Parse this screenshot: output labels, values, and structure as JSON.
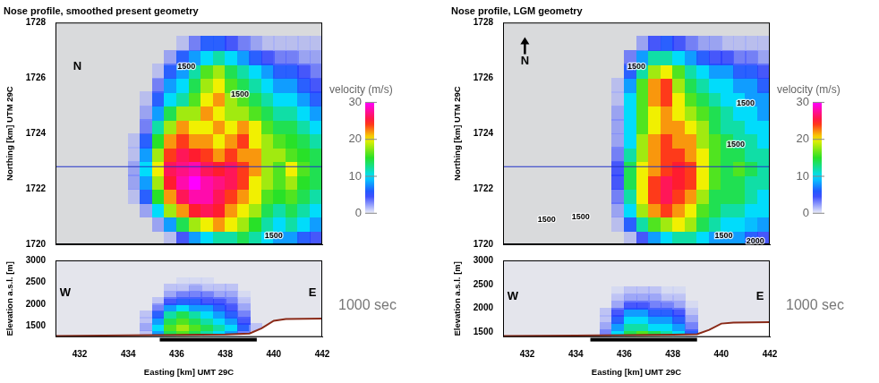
{
  "chart_data": [
    {
      "type": "heatmap",
      "title": "Nose profile, smoothed present geometry",
      "ylabel": "Northing [km] UTM 29C",
      "xlim": [
        431,
        442
      ],
      "ylim": [
        1720,
        1728
      ],
      "yticks": [
        1720,
        1722,
        1724,
        1726,
        1728
      ],
      "tick_labels": "y",
      "grid": false,
      "x_centers": [
        434.25,
        434.75,
        435.25,
        435.75,
        436.25,
        436.75,
        437.25,
        437.75,
        438.25,
        438.75,
        439.25,
        439.75,
        440.25,
        440.75,
        441.25,
        441.75
      ],
      "y_centers": [
        1720.25,
        1720.75,
        1721.25,
        1721.75,
        1722.25,
        1722.75,
        1723.25,
        1723.75,
        1724.25,
        1724.75,
        1725.25,
        1725.75,
        1726.25,
        1726.75,
        1727.25,
        1727.75
      ],
      "cells": [
        [
          0,
          0,
          0,
          2,
          5,
          8,
          10,
          12,
          12,
          14,
          12,
          10,
          8,
          8,
          6,
          5
        ],
        [
          0,
          0,
          3,
          8,
          14,
          18,
          20,
          22,
          20,
          18,
          15,
          12,
          10,
          12,
          10,
          8
        ],
        [
          0,
          3,
          10,
          18,
          22,
          25,
          26,
          25,
          22,
          20,
          18,
          14,
          12,
          14,
          12,
          10
        ],
        [
          2,
          6,
          15,
          22,
          26,
          28,
          28,
          26,
          24,
          22,
          20,
          16,
          15,
          16,
          14,
          12
        ],
        [
          3,
          8,
          18,
          25,
          28,
          30,
          28,
          27,
          26,
          24,
          20,
          18,
          16,
          18,
          15,
          14
        ],
        [
          3,
          10,
          20,
          26,
          27,
          28,
          26,
          25,
          26,
          24,
          22,
          18,
          16,
          20,
          16,
          14
        ],
        [
          2,
          8,
          18,
          24,
          26,
          25,
          24,
          22,
          24,
          22,
          22,
          18,
          18,
          16,
          15,
          14
        ],
        [
          2,
          6,
          15,
          22,
          24,
          22,
          22,
          20,
          22,
          24,
          20,
          18,
          16,
          15,
          14,
          12
        ],
        [
          0,
          4,
          12,
          18,
          22,
          20,
          20,
          22,
          20,
          22,
          20,
          16,
          14,
          14,
          12,
          10
        ],
        [
          0,
          3,
          8,
          14,
          18,
          18,
          22,
          20,
          18,
          18,
          16,
          14,
          12,
          12,
          10,
          8
        ],
        [
          0,
          2,
          6,
          10,
          12,
          16,
          20,
          22,
          18,
          16,
          14,
          12,
          10,
          10,
          8,
          6
        ],
        [
          0,
          0,
          4,
          8,
          10,
          14,
          18,
          20,
          16,
          14,
          12,
          10,
          8,
          8,
          6,
          5
        ],
        [
          0,
          0,
          2,
          6,
          8,
          12,
          16,
          18,
          14,
          12,
          10,
          8,
          6,
          6,
          5,
          4
        ],
        [
          0,
          0,
          0,
          3,
          6,
          8,
          10,
          12,
          10,
          8,
          6,
          5,
          4,
          4,
          3,
          3
        ],
        [
          0,
          0,
          0,
          0,
          2,
          4,
          6,
          6,
          5,
          4,
          3,
          2,
          2,
          2,
          2,
          2
        ],
        [
          0,
          0,
          0,
          0,
          0,
          0,
          0,
          0,
          0,
          0,
          0,
          0,
          0,
          0,
          0,
          0
        ]
      ],
      "colorbar": {
        "title": "velocity (m/s)",
        "range": [
          0,
          30
        ],
        "ticks": [
          0,
          10,
          20,
          30
        ]
      },
      "profile_northing": 1722.8,
      "annotations": [
        {
          "text": "N",
          "x": 431.9,
          "y": 1726.4
        },
        {
          "text": "1500",
          "x": 436.4,
          "y": 1726.4
        },
        {
          "text": "1500",
          "x": 438.6,
          "y": 1725.4
        },
        {
          "text": "1500",
          "x": 440.0,
          "y": 1720.3
        }
      ]
    },
    {
      "type": "heatmap",
      "xlabel": "Easting [km] UMT 29C",
      "ylabel": "Elevation a.s.l. [m]",
      "xlim": [
        431,
        442
      ],
      "xticks": [
        432,
        434,
        436,
        438,
        440,
        442
      ],
      "ylim": [
        1250,
        3000
      ],
      "yticks": [
        1500,
        2000,
        2500,
        3000
      ],
      "grid": false,
      "x_centers": [
        434.25,
        434.75,
        435.25,
        435.75,
        436.25,
        436.75,
        437.25,
        437.75,
        438.25,
        438.75,
        439.25,
        439.75
      ],
      "y_centers": [
        1325,
        1475,
        1625,
        1775,
        1925,
        2075,
        2225,
        2375,
        2525
      ],
      "cells": [
        [
          0,
          2,
          8,
          14,
          16,
          14,
          12,
          10,
          8,
          4,
          0,
          0
        ],
        [
          0,
          3,
          10,
          16,
          18,
          16,
          14,
          12,
          10,
          6,
          2,
          0
        ],
        [
          0,
          2,
          8,
          14,
          16,
          14,
          12,
          10,
          8,
          5,
          0,
          0
        ],
        [
          0,
          2,
          6,
          12,
          14,
          12,
          10,
          8,
          6,
          4,
          0,
          0
        ],
        [
          0,
          0,
          4,
          8,
          10,
          8,
          8,
          6,
          5,
          3,
          0,
          0
        ],
        [
          0,
          0,
          2,
          5,
          6,
          6,
          5,
          5,
          4,
          2,
          0,
          0
        ],
        [
          0,
          0,
          0,
          3,
          4,
          4,
          4,
          3,
          3,
          1,
          0,
          0
        ],
        [
          0,
          0,
          0,
          2,
          2,
          3,
          2,
          2,
          2,
          0,
          0,
          0
        ],
        [
          0,
          0,
          0,
          0,
          1,
          1,
          1,
          0,
          0,
          0,
          0,
          0
        ]
      ],
      "color_range": [
        0,
        30
      ],
      "terrain": {
        "x": [
          431,
          434,
          436,
          438,
          439,
          439.5,
          440,
          440.5,
          442
        ],
        "y": [
          1270,
          1290,
          1300,
          1310,
          1330,
          1450,
          1620,
          1660,
          1670
        ]
      },
      "extent_bar": [
        435.3,
        439.3
      ],
      "annotations": [
        {
          "text": "W",
          "x": 431.4,
          "y": 2250
        },
        {
          "text": "E",
          "x": 441.6,
          "y": 2250
        }
      ],
      "time_label": "1000 sec"
    },
    {
      "type": "heatmap",
      "title": "Nose profile, LGM geometry",
      "ylabel": "Northing [km] UTM 29C",
      "xlim": [
        431,
        442
      ],
      "ylim": [
        1720,
        1728
      ],
      "yticks": [
        1720,
        1722,
        1724,
        1726,
        1728
      ],
      "tick_labels": "y",
      "grid": false,
      "x_centers": [
        434.25,
        434.75,
        435.25,
        435.75,
        436.25,
        436.75,
        437.25,
        437.75,
        438.25,
        438.75,
        439.25,
        439.75,
        440.25,
        440.75,
        441.25,
        441.75
      ],
      "y_centers": [
        1720.25,
        1720.75,
        1721.25,
        1721.75,
        1722.25,
        1722.75,
        1723.25,
        1723.75,
        1724.25,
        1724.75,
        1725.25,
        1725.75,
        1726.25,
        1726.75,
        1727.25,
        1727.75
      ],
      "cells": [
        [
          0,
          0,
          0,
          0,
          2,
          5,
          8,
          10,
          12,
          12,
          10,
          8,
          8,
          8,
          6,
          5
        ],
        [
          0,
          0,
          0,
          2,
          6,
          12,
          16,
          18,
          20,
          18,
          14,
          12,
          10,
          10,
          9,
          8
        ],
        [
          0,
          0,
          0,
          3,
          10,
          18,
          22,
          24,
          22,
          20,
          16,
          14,
          12,
          12,
          10,
          10
        ],
        [
          0,
          0,
          0,
          4,
          12,
          20,
          24,
          26,
          24,
          22,
          18,
          14,
          14,
          14,
          12,
          10
        ],
        [
          0,
          0,
          0,
          5,
          14,
          20,
          24,
          26,
          25,
          24,
          20,
          16,
          14,
          14,
          12,
          12
        ],
        [
          0,
          0,
          0,
          5,
          14,
          20,
          22,
          24,
          25,
          24,
          20,
          16,
          14,
          16,
          14,
          12
        ],
        [
          0,
          0,
          0,
          4,
          12,
          18,
          22,
          24,
          24,
          22,
          20,
          16,
          14,
          14,
          12,
          12
        ],
        [
          0,
          0,
          0,
          3,
          10,
          18,
          22,
          24,
          22,
          22,
          18,
          16,
          14,
          12,
          12,
          10
        ],
        [
          0,
          0,
          0,
          3,
          10,
          16,
          20,
          22,
          22,
          20,
          18,
          14,
          12,
          12,
          10,
          10
        ],
        [
          0,
          0,
          0,
          3,
          10,
          16,
          20,
          22,
          20,
          18,
          16,
          14,
          12,
          10,
          10,
          8
        ],
        [
          0,
          0,
          0,
          2,
          10,
          16,
          22,
          24,
          20,
          16,
          14,
          12,
          10,
          10,
          8,
          8
        ],
        [
          0,
          0,
          0,
          2,
          8,
          16,
          22,
          24,
          18,
          14,
          12,
          10,
          10,
          8,
          8,
          6
        ],
        [
          0,
          0,
          0,
          0,
          6,
          12,
          18,
          20,
          16,
          12,
          10,
          8,
          8,
          6,
          6,
          5
        ],
        [
          0,
          0,
          0,
          0,
          4,
          8,
          12,
          12,
          10,
          8,
          6,
          5,
          5,
          4,
          4,
          3
        ],
        [
          0,
          0,
          0,
          0,
          0,
          3,
          5,
          6,
          5,
          4,
          3,
          3,
          2,
          2,
          2,
          2
        ],
        [
          0,
          0,
          0,
          0,
          0,
          0,
          0,
          0,
          0,
          0,
          0,
          0,
          0,
          0,
          0,
          0
        ]
      ],
      "colorbar": {
        "title": "velocity (m/s)",
        "range": [
          0,
          30
        ],
        "ticks": [
          0,
          10,
          20,
          30
        ]
      },
      "profile_northing": 1722.8,
      "annotations": [
        {
          "text": "N",
          "x": 431.9,
          "y": 1726.6,
          "marker": "arrow"
        },
        {
          "text": "1500",
          "x": 436.5,
          "y": 1726.4
        },
        {
          "text": "1500",
          "x": 441.0,
          "y": 1725.1
        },
        {
          "text": "1500",
          "x": 440.6,
          "y": 1723.6
        },
        {
          "text": "1500",
          "x": 432.8,
          "y": 1720.9
        },
        {
          "text": "1500",
          "x": 434.2,
          "y": 1721.0
        },
        {
          "text": "1500",
          "x": 440.1,
          "y": 1720.3
        },
        {
          "text": "2000",
          "x": 441.4,
          "y": 1720.1
        }
      ]
    },
    {
      "type": "heatmap",
      "xlabel": "Easting [km] UMT 29C",
      "ylabel": "Elevation a.s.l. [m]",
      "xlim": [
        431,
        442
      ],
      "xticks": [
        432,
        434,
        436,
        438,
        440,
        442
      ],
      "ylim": [
        1400,
        3000
      ],
      "yticks": [
        1500,
        2000,
        2500,
        3000
      ],
      "grid": false,
      "x_centers": [
        434.25,
        434.75,
        435.25,
        435.75,
        436.25,
        436.75,
        437.25,
        437.75,
        438.25,
        438.75,
        439.25,
        439.75
      ],
      "y_centers": [
        1475,
        1625,
        1775,
        1925,
        2075,
        2225,
        2375
      ],
      "cells": [
        [
          0,
          0,
          4,
          10,
          14,
          16,
          14,
          12,
          10,
          6,
          0,
          0
        ],
        [
          0,
          0,
          3,
          8,
          12,
          12,
          10,
          10,
          8,
          4,
          0,
          0
        ],
        [
          0,
          0,
          2,
          6,
          10,
          10,
          8,
          8,
          6,
          3,
          0,
          0
        ],
        [
          0,
          0,
          2,
          5,
          8,
          8,
          6,
          6,
          5,
          2,
          0,
          0
        ],
        [
          0,
          0,
          0,
          3,
          5,
          5,
          4,
          4,
          3,
          1,
          0,
          0
        ],
        [
          0,
          0,
          0,
          2,
          3,
          3,
          3,
          2,
          2,
          0,
          0,
          0
        ],
        [
          0,
          0,
          0,
          1,
          2,
          2,
          2,
          1,
          1,
          0,
          0,
          0
        ]
      ],
      "color_range": [
        0,
        30
      ],
      "terrain": {
        "x": [
          431,
          434,
          436,
          438,
          439,
          439.5,
          440,
          440.5,
          442
        ],
        "y": [
          1420,
          1430,
          1440,
          1450,
          1460,
          1550,
          1680,
          1700,
          1710
        ]
      },
      "extent_bar": [
        434.6,
        439.0
      ],
      "annotations": [
        {
          "text": "W",
          "x": 431.4,
          "y": 2250
        },
        {
          "text": "E",
          "x": 441.6,
          "y": 2250
        }
      ],
      "time_label": "1000 sec"
    }
  ]
}
